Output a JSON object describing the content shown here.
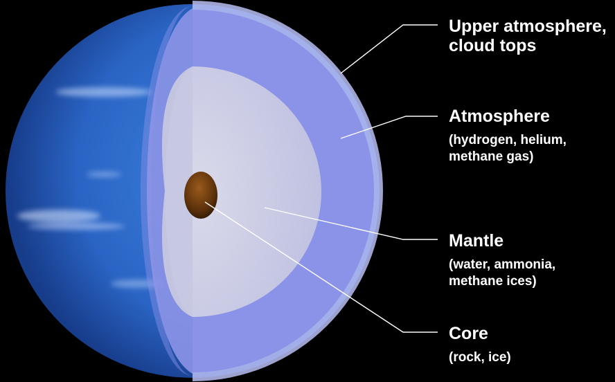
{
  "labels": [
    {
      "id": "upper",
      "title_lines": [
        "Upper atmosphere,",
        "cloud tops"
      ],
      "sub_lines": []
    },
    {
      "id": "atmosphere",
      "title_lines": [
        "Atmosphere"
      ],
      "sub_lines": [
        "(hydrogen, helium,",
        "methane gas)"
      ]
    },
    {
      "id": "mantle",
      "title_lines": [
        "Mantle"
      ],
      "sub_lines": [
        "(water, ammonia,",
        "methane ices)"
      ]
    },
    {
      "id": "core",
      "title_lines": [
        "Core"
      ],
      "sub_lines": [
        "(rock, ice)"
      ]
    }
  ],
  "colors": {
    "background": "#000000",
    "planet_surface": "#3f7fd8",
    "upper_atmosphere": "#8c94e6",
    "mantle": "#c8c9e2",
    "core": "#6b3a0c",
    "leader_line": "#ffffff",
    "text": "#ffffff"
  }
}
